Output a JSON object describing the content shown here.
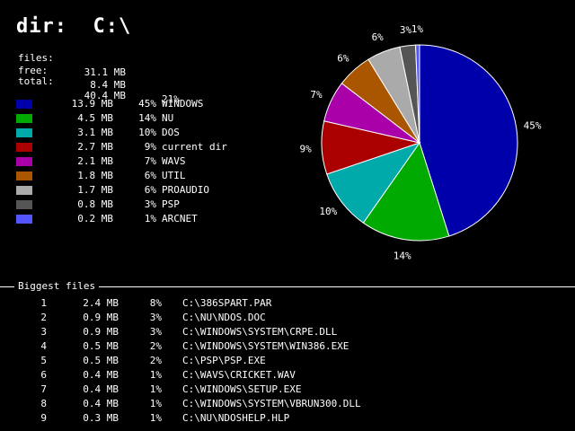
{
  "header": {
    "title": "dir:  C:\\"
  },
  "summary": {
    "files_label": "files:",
    "files_value": "31.1 MB",
    "free_label": "free:",
    "free_value": "8.4 MB",
    "free_pct": "21%",
    "total_label": "total:",
    "total_value": "40.4 MB"
  },
  "legend": [
    {
      "size": "13.9 MB",
      "pct": "45%",
      "name": "WINDOWS",
      "color": "#0000aa"
    },
    {
      "size": "4.5 MB",
      "pct": "14%",
      "name": "NU",
      "color": "#00aa00"
    },
    {
      "size": "3.1 MB",
      "pct": "10%",
      "name": "DOS",
      "color": "#00aaaa"
    },
    {
      "size": "2.7 MB",
      "pct": "9%",
      "name": "current dir",
      "color": "#aa0000"
    },
    {
      "size": "2.1 MB",
      "pct": "7%",
      "name": "WAVS",
      "color": "#aa00aa"
    },
    {
      "size": "1.8 MB",
      "pct": "6%",
      "name": "UTIL",
      "color": "#aa5500"
    },
    {
      "size": "1.7 MB",
      "pct": "6%",
      "name": "PROAUDIO",
      "color": "#aaaaaa"
    },
    {
      "size": "0.8 MB",
      "pct": "3%",
      "name": "PSP",
      "color": "#555555"
    },
    {
      "size": "0.2 MB",
      "pct": "1%",
      "name": "ARCNET",
      "color": "#5555ff"
    }
  ],
  "chart_data": {
    "type": "pie",
    "categories": [
      "WINDOWS",
      "NU",
      "DOS",
      "current dir",
      "WAVS",
      "UTIL",
      "PROAUDIO",
      "PSP",
      "ARCNET"
    ],
    "values": [
      13.9,
      4.5,
      3.1,
      2.7,
      2.1,
      1.8,
      1.7,
      0.8,
      0.2
    ],
    "labels": [
      "45%",
      "14%",
      "10%",
      "9%",
      "7%",
      "6%",
      "6%",
      "3%",
      "1%"
    ],
    "colors": [
      "#0000aa",
      "#00aa00",
      "#00aaaa",
      "#aa0000",
      "#aa00aa",
      "#aa5500",
      "#aaaaaa",
      "#555555",
      "#5555ff"
    ]
  },
  "biggest_files": {
    "title": "Biggest files",
    "rows": [
      {
        "idx": "1",
        "size": "2.4 MB",
        "pct": "8%",
        "path": "C:\\386SPART.PAR"
      },
      {
        "idx": "2",
        "size": "0.9 MB",
        "pct": "3%",
        "path": "C:\\NU\\NDOS.DOC"
      },
      {
        "idx": "3",
        "size": "0.9 MB",
        "pct": "3%",
        "path": "C:\\WINDOWS\\SYSTEM\\CRPE.DLL"
      },
      {
        "idx": "4",
        "size": "0.5 MB",
        "pct": "2%",
        "path": "C:\\WINDOWS\\SYSTEM\\WIN386.EXE"
      },
      {
        "idx": "5",
        "size": "0.5 MB",
        "pct": "2%",
        "path": "C:\\PSP\\PSP.EXE"
      },
      {
        "idx": "6",
        "size": "0.4 MB",
        "pct": "1%",
        "path": "C:\\WAVS\\CRICKET.WAV"
      },
      {
        "idx": "7",
        "size": "0.4 MB",
        "pct": "1%",
        "path": "C:\\WINDOWS\\SETUP.EXE"
      },
      {
        "idx": "8",
        "size": "0.4 MB",
        "pct": "1%",
        "path": "C:\\WINDOWS\\SYSTEM\\VBRUN300.DLL"
      },
      {
        "idx": "9",
        "size": "0.3 MB",
        "pct": "1%",
        "path": "C:\\NU\\NDOSHELP.HLP"
      }
    ]
  }
}
